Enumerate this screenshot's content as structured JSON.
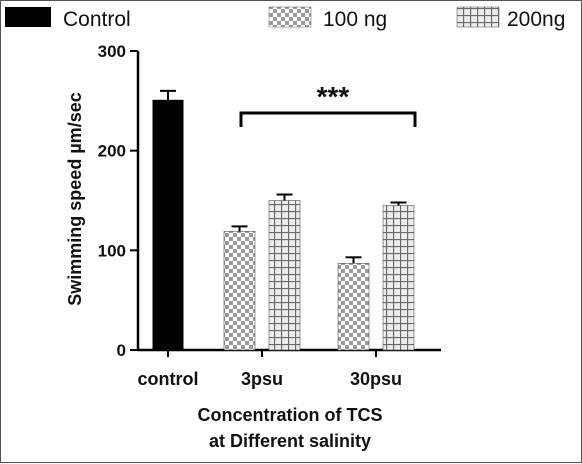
{
  "chart_data": {
    "type": "bar",
    "title": "",
    "ylabel": "Swimming speed µm/sec",
    "xlabel": [
      "Concentration of TCS",
      "at Different salinity"
    ],
    "ylim": [
      0,
      300
    ],
    "yticks": [
      "0",
      "100",
      "200",
      "300"
    ],
    "categories": [
      "control",
      "3psu",
      "30psu"
    ],
    "legend_position": "top",
    "series": [
      {
        "name": "Control",
        "pattern": "solid",
        "color": "#000000",
        "values": [
          251,
          null,
          null
        ],
        "errors": [
          9,
          null,
          null
        ]
      },
      {
        "name": "100 ng",
        "pattern": "checker",
        "color": "#9a9a9a",
        "values": [
          null,
          119,
          87
        ],
        "errors": [
          null,
          5,
          6
        ]
      },
      {
        "name": "200ng",
        "pattern": "grid",
        "color": "#8a8a8a",
        "values": [
          null,
          150,
          145
        ],
        "errors": [
          null,
          6,
          3
        ]
      }
    ],
    "annotation": {
      "text": "***",
      "from_category": "3psu",
      "to_category": "30psu"
    },
    "grid": false
  }
}
